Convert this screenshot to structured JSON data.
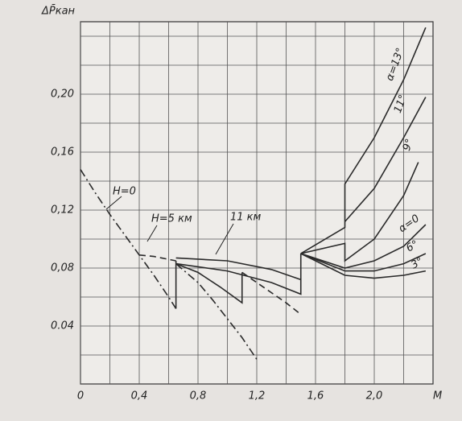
{
  "chart_data": {
    "type": "line",
    "y_label": "ΔP̄кан",
    "x_label": "M",
    "xlim": [
      0,
      2.4
    ],
    "ylim": [
      0,
      0.25
    ],
    "xticks": [
      {
        "value": 0,
        "label": "0"
      },
      {
        "value": 0.4,
        "label": "0,4"
      },
      {
        "value": 0.8,
        "label": "0,8"
      },
      {
        "value": 1.2,
        "label": "1,2"
      },
      {
        "value": 1.6,
        "label": "1,6"
      },
      {
        "value": 2.0,
        "label": "2,0"
      }
    ],
    "xminor": [
      0.2,
      0.6,
      1.0,
      1.4,
      1.8,
      2.2
    ],
    "yticks": [
      {
        "value": 0.04,
        "label": "0.04"
      },
      {
        "value": 0.08,
        "label": "0,08"
      },
      {
        "value": 0.12,
        "label": "0,12"
      },
      {
        "value": 0.16,
        "label": "0,16"
      },
      {
        "value": 0.2,
        "label": "0,20"
      }
    ],
    "yminor": [
      0.02,
      0.06,
      0.1,
      0.14,
      0.18,
      0.22,
      0.24
    ],
    "grid": true,
    "color": "#2a2a2a",
    "series": [
      {
        "dash": "dashdot",
        "x": [
          0,
          0.1,
          0.2,
          0.3,
          0.4,
          0.5,
          0.6,
          0.65
        ],
        "values": [
          0.148,
          0.132,
          0.117,
          0.103,
          0.089,
          0.075,
          0.06,
          0.052
        ]
      },
      {
        "dash": "solid",
        "x": [
          0.65,
          0.65
        ],
        "values": [
          0.052,
          0.085
        ]
      },
      {
        "dash": "dashdot",
        "x": [
          0.65,
          0.8,
          0.9,
          1.0,
          1.1,
          1.2
        ],
        "values": [
          0.083,
          0.07,
          0.058,
          0.045,
          0.032,
          0.017
        ]
      },
      {
        "dash": "dashed",
        "x": [
          0.4,
          0.5,
          0.6,
          0.65
        ],
        "values": [
          0.089,
          0.088,
          0.086,
          0.085
        ]
      },
      {
        "dash": "solid",
        "x": [
          0.65,
          0.8,
          0.95,
          1.1,
          1.1
        ],
        "values": [
          0.083,
          0.077,
          0.067,
          0.056,
          0.077
        ]
      },
      {
        "dash": "dashed",
        "x": [
          1.1,
          1.2,
          1.3,
          1.4,
          1.5
        ],
        "values": [
          0.077,
          0.07,
          0.063,
          0.056,
          0.048
        ]
      },
      {
        "dash": "solid",
        "x": [
          0.65,
          1.0,
          1.3,
          1.5
        ],
        "values": [
          0.087,
          0.085,
          0.079,
          0.072
        ]
      },
      {
        "dash": "solid",
        "x": [
          0.65,
          1.0,
          1.3,
          1.5,
          1.5
        ],
        "values": [
          0.083,
          0.078,
          0.07,
          0.062,
          0.09
        ]
      },
      {
        "dash": "solid",
        "x": [
          1.5,
          1.8,
          1.8,
          2.0,
          2.2,
          2.35
        ],
        "values": [
          0.09,
          0.108,
          0.138,
          0.17,
          0.21,
          0.246
        ]
      },
      {
        "dash": "solid",
        "x": [
          1.8,
          2.0,
          2.2,
          2.35
        ],
        "values": [
          0.112,
          0.135,
          0.17,
          0.198
        ]
      },
      {
        "dash": "solid",
        "x": [
          1.5,
          1.8,
          1.8,
          2.0,
          2.2,
          2.3
        ],
        "values": [
          0.09,
          0.097,
          0.085,
          0.1,
          0.13,
          0.153
        ]
      },
      {
        "dash": "solid",
        "x": [
          1.5,
          1.8,
          2.0,
          2.2,
          2.35
        ],
        "values": [
          0.09,
          0.08,
          0.085,
          0.095,
          0.11
        ]
      },
      {
        "dash": "solid",
        "x": [
          1.5,
          1.8,
          2.0,
          2.2,
          2.35
        ],
        "values": [
          0.09,
          0.078,
          0.078,
          0.083,
          0.09
        ]
      },
      {
        "dash": "solid",
        "x": [
          1.5,
          1.8,
          2.0,
          2.2,
          2.35
        ],
        "values": [
          0.09,
          0.075,
          0.073,
          0.075,
          0.078
        ]
      }
    ],
    "annotations": [
      "H=0",
      "H=5 км",
      "11 км",
      "α=13°",
      "11°",
      "9°",
      "α=0",
      "6°",
      "3°"
    ]
  }
}
